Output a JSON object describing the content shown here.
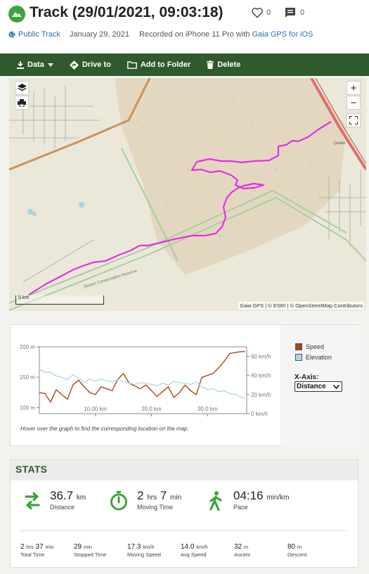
{
  "header": {
    "title": "Track (29/01/2021, 09:03:18)",
    "likes": "0",
    "comments": "0",
    "visibility": "Public Track",
    "date": "January 29, 2021",
    "recorded_prefix": "Recorded on iPhone 11 Pro with",
    "app_link": "Gaia GPS for iOS"
  },
  "toolbar": {
    "data_label": "Data",
    "drive_label": "Drive to",
    "folder_label": "Add to Folder",
    "delete_label": "Delete"
  },
  "map": {
    "zoom_in": "+",
    "zoom_out": "−",
    "scale_label": "5 km",
    "attribution": "Gaia GPS | © ESRI | © OpenStreetMap Contributors",
    "town_label": "Qrailah",
    "reserve_label": "Desert Conservation Reserve",
    "track_color": "#e62ee6"
  },
  "graph": {
    "hint": "Hover over the graph to find the corresponding location on the map.",
    "legend": [
      {
        "name": "Speed",
        "color": "#b3441b"
      },
      {
        "name": "Elevation",
        "color": "#a8d8e8"
      }
    ],
    "xaxis_label": "X-Axis:",
    "xaxis_value": "Distance",
    "left_ticks": [
      "200 m",
      "150 m",
      "100 m"
    ],
    "right_ticks": [
      "60 km/h",
      "40 km/h",
      "20 km/h",
      "0 km/h"
    ],
    "x_ticks": [
      "10.00 km",
      "20.0 km",
      "30.0 km"
    ]
  },
  "chart_data": {
    "type": "line",
    "x": [
      0,
      1,
      2,
      3,
      4,
      5,
      6,
      7,
      8,
      9,
      10,
      11,
      12,
      13,
      14,
      15,
      16,
      17,
      18,
      19,
      20,
      21,
      22,
      23,
      24,
      25,
      26,
      27,
      28,
      29,
      30,
      31,
      32,
      33,
      34,
      35,
      36,
      36.7
    ],
    "series": [
      {
        "name": "Speed",
        "axis": "right",
        "values": [
          22,
          21,
          12,
          25,
          20,
          15,
          30,
          35,
          28,
          22,
          20,
          28,
          26,
          24,
          36,
          42,
          32,
          29,
          26,
          30,
          24,
          18,
          23,
          28,
          17,
          22,
          30,
          24,
          20,
          38,
          40,
          42,
          48,
          55,
          63,
          64,
          65,
          65
        ]
      },
      {
        "name": "Elevation",
        "axis": "left",
        "values": [
          163,
          158,
          158,
          152,
          150,
          146,
          154,
          148,
          142,
          147,
          143,
          147,
          144,
          142,
          146,
          143,
          140,
          138,
          141,
          140,
          138,
          136,
          140,
          137,
          143,
          141,
          140,
          138,
          142,
          134,
          130,
          131,
          126,
          128,
          123,
          122,
          117,
          115
        ]
      }
    ],
    "x_unit": "km",
    "left_ylim": [
      90,
      200
    ],
    "right_ylim": [
      0,
      70
    ],
    "xlim": [
      0,
      37
    ]
  },
  "stats": {
    "heading": "STATS",
    "distance": {
      "value": "36.7",
      "unit": "km",
      "label": "Distance"
    },
    "moving_time": {
      "h": "2",
      "h_unit": "hrs",
      "m": "7",
      "m_unit": "min",
      "label": "Moving Time"
    },
    "pace": {
      "value": "04:16",
      "unit": "min/km",
      "label": "Pace"
    },
    "total_time": {
      "h": "2",
      "h_unit": "hrs",
      "m": "37",
      "m_unit": "min",
      "label": "Total Time"
    },
    "stopped_time": {
      "value": "29",
      "unit": "min",
      "label": "Stopped Time"
    },
    "moving_speed": {
      "value": "17.3",
      "unit": "km/h",
      "label": "Moving Speed"
    },
    "avg_speed": {
      "value": "14.0",
      "unit": "km/h",
      "label": "Avg Speed"
    },
    "ascent": {
      "value": "32",
      "unit": "m",
      "label": "Ascent"
    },
    "descent": {
      "value": "80",
      "unit": "m",
      "label": "Descent"
    },
    "icon_color": "#3aa63a"
  }
}
